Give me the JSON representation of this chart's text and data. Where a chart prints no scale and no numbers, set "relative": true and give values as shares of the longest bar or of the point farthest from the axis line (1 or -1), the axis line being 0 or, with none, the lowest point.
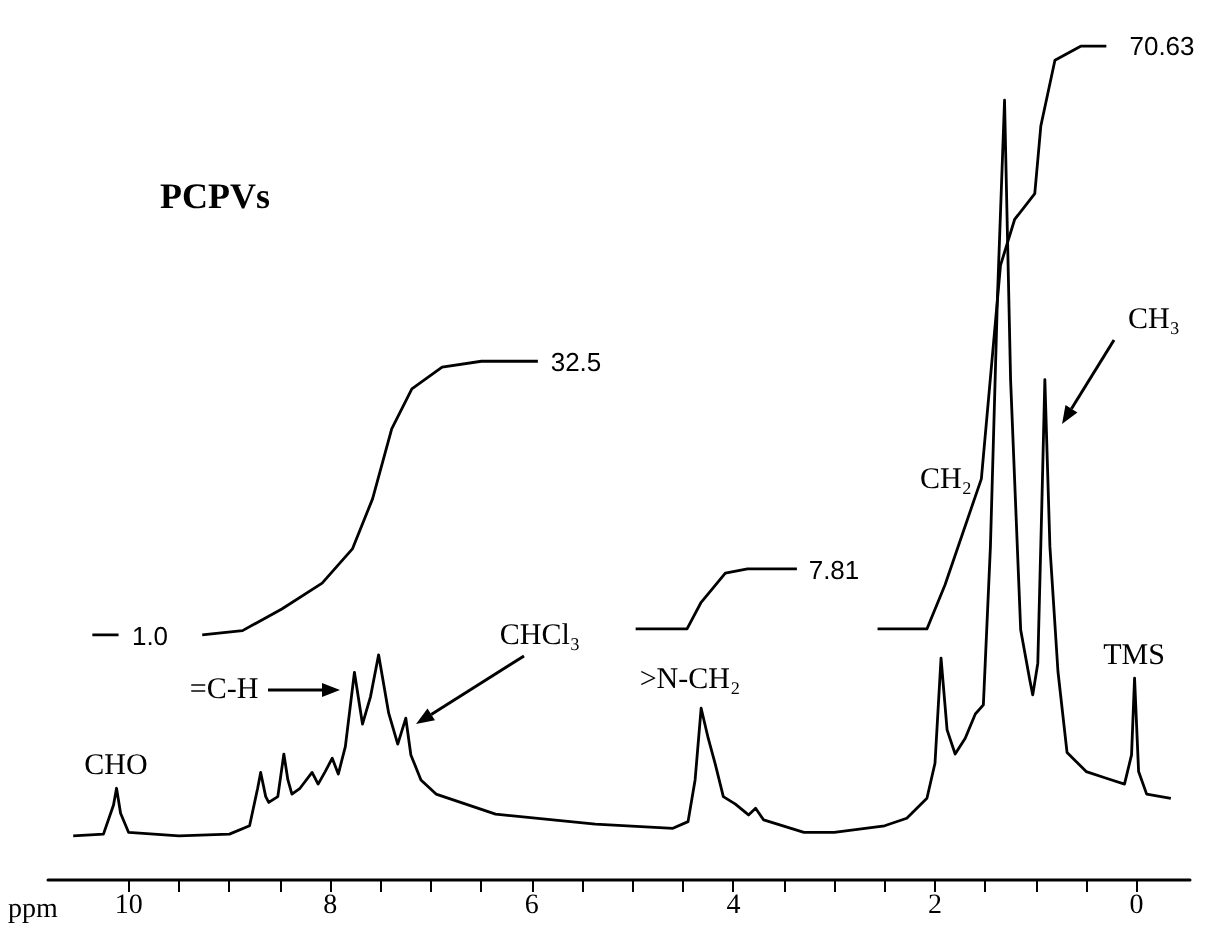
{
  "chart_data": {
    "type": "line",
    "title": "PCPVs",
    "xlabel": "ppm",
    "relative": true,
    "xlim": [
      10.8,
      -0.53
    ],
    "xticks": [
      10,
      {
        "value": 9.5,
        "label": null
      },
      {
        "value": 9,
        "label": null
      },
      {
        "value": 8.5,
        "label": null
      },
      8,
      {
        "value": 7.5,
        "label": null
      },
      {
        "value": 7,
        "label": null
      },
      {
        "value": 6.5,
        "label": null
      },
      6,
      {
        "value": 5.5,
        "label": null
      },
      {
        "value": 5,
        "label": null
      },
      {
        "value": 4.5,
        "label": null
      },
      4,
      {
        "value": 3.5,
        "label": null
      },
      {
        "value": 3,
        "label": null
      },
      {
        "value": 2.5,
        "label": null
      },
      2,
      {
        "value": 1.5,
        "label": null
      },
      {
        "value": 1,
        "label": null
      },
      {
        "value": 0.5,
        "label": null
      },
      0
    ],
    "series": [
      {
        "color": "#000000",
        "x": [
          10.55,
          10.25,
          10.15,
          10.12,
          10.08,
          10.0,
          9.5,
          9.0,
          8.8,
          8.72,
          8.69,
          8.64,
          8.61,
          8.52,
          8.46,
          8.42,
          8.38,
          8.3,
          8.18,
          8.12,
          8.05,
          7.98,
          7.92,
          7.85,
          7.76,
          7.68,
          7.6,
          7.52,
          7.42,
          7.33,
          7.25,
          7.2,
          7.1,
          6.95,
          6.36,
          5.37,
          4.6,
          4.45,
          4.38,
          4.32,
          4.25,
          4.18,
          4.1,
          3.98,
          3.85,
          3.78,
          3.7,
          3.3,
          3.0,
          2.5,
          2.28,
          2.08,
          2.0,
          1.94,
          1.88,
          1.8,
          1.7,
          1.6,
          1.52,
          1.45,
          1.38,
          1.31,
          1.25,
          1.15,
          1.06,
          1.03,
          0.98,
          0.94,
          0.91,
          0.86,
          0.78,
          0.69,
          0.5,
          0.3,
          0.12,
          0.05,
          0.02,
          -0.02,
          -0.1,
          -0.34
        ],
        "values": [
          0.053,
          0.055,
          0.09,
          0.11,
          0.08,
          0.057,
          0.053,
          0.055,
          0.065,
          0.11,
          0.129,
          0.1,
          0.093,
          0.1,
          0.151,
          0.12,
          0.103,
          0.11,
          0.129,
          0.115,
          0.13,
          0.146,
          0.127,
          0.16,
          0.249,
          0.187,
          0.22,
          0.27,
          0.2,
          0.163,
          0.194,
          0.15,
          0.12,
          0.103,
          0.079,
          0.067,
          0.062,
          0.07,
          0.12,
          0.206,
          0.17,
          0.139,
          0.1,
          0.091,
          0.078,
          0.086,
          0.072,
          0.057,
          0.057,
          0.065,
          0.074,
          0.098,
          0.14,
          0.266,
          0.18,
          0.151,
          0.17,
          0.199,
          0.21,
          0.4,
          0.7,
          0.935,
          0.6,
          0.3,
          0.24,
          0.222,
          0.26,
          0.45,
          0.6,
          0.4,
          0.25,
          0.153,
          0.13,
          0.122,
          0.115,
          0.15,
          0.242,
          0.13,
          0.103,
          0.098
        ]
      },
      {
        "color": "#000000",
        "x": [
          10.36,
          10.1,
          9.6,
          9.27,
          8.87,
          8.48,
          8.08,
          7.78,
          7.58,
          7.39,
          7.19,
          6.89,
          6.5,
          5.94
        ],
        "values": [
          0.294,
          0.294,
          null,
          0.294,
          0.299,
          0.325,
          0.356,
          0.397,
          0.457,
          0.541,
          0.589,
          0.615,
          0.622,
          0.622
        ]
      },
      {
        "color": "#000000",
        "x": [
          4.97,
          4.46,
          4.32,
          4.08,
          3.86,
          3.37
        ],
        "values": [
          0.301,
          0.301,
          0.333,
          0.368,
          0.373,
          0.373
        ]
      },
      {
        "color": "#000000",
        "x": [
          2.57,
          2.08,
          1.9,
          1.54,
          1.35,
          1.21,
          1.01,
          0.95,
          0.81,
          0.55,
          0.3
        ],
        "values": [
          0.301,
          0.301,
          0.354,
          0.481,
          0.737,
          0.792,
          0.823,
          0.904,
          0.983,
          1.0,
          1.0
        ]
      }
    ],
    "annotations": [
      "CHO",
      "=C-H",
      "CHCl₃",
      ">N-CH₂",
      "CH₂",
      "CH₃",
      "TMS",
      "1.0",
      "32.5",
      "7.81",
      "70.63"
    ]
  }
}
